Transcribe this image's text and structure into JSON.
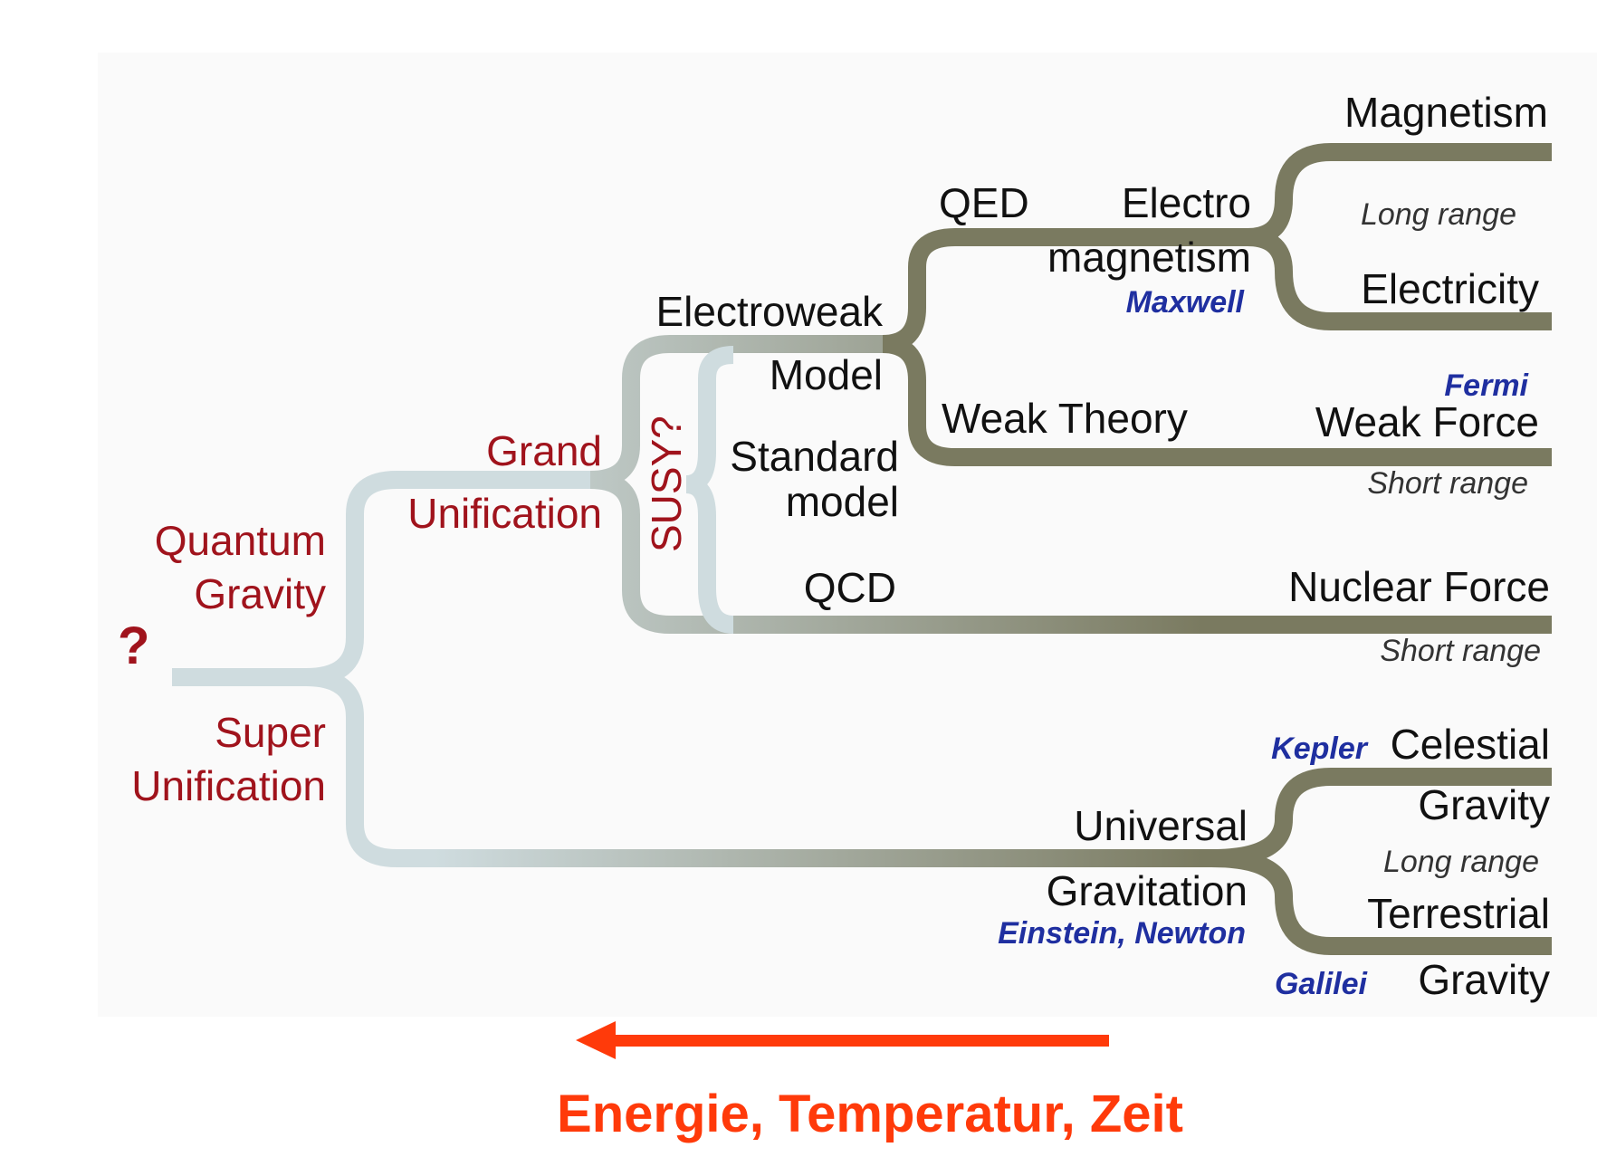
{
  "colors": {
    "early_branch": "#cfdcdf",
    "late_branch": "#7a7a60",
    "arrow": "#ff3a0a",
    "background_panel": "#fafafa"
  },
  "labels": {
    "question_mark": "?",
    "quantum": "Quantum",
    "gravity_q": "Gravity",
    "super": "Super",
    "super_unification": "Unification",
    "grand": "Grand",
    "grand_unification": "Unification",
    "susy": "SUSY?",
    "electroweak": "Electroweak",
    "model": "Model",
    "standard": "Standard",
    "standard_model": "model",
    "qcd": "QCD",
    "qed": "QED",
    "electro": "Electro",
    "electro_magnetism": "magnetism",
    "maxwell": "Maxwell",
    "weak_theory": "Weak Theory",
    "magnetism": "Magnetism",
    "long_range_1": "Long range",
    "electricity": "Electricity",
    "fermi": "Fermi",
    "weak_force": "Weak Force",
    "short_range_1": "Short range",
    "nuclear_force": "Nuclear Force",
    "short_range_2": "Short range",
    "kepler": "Kepler",
    "celestial": "Celestial",
    "gravity_c": "Gravity",
    "long_range_2": "Long range",
    "universal": "Universal",
    "gravitation": "Gravitation",
    "einstein_newton": "Einstein, Newton",
    "terrestrial": "Terrestrial",
    "galilei": "Galilei",
    "gravity_t": "Gravity"
  },
  "arrow": {
    "caption": "Energie, Temperatur, Zeit"
  }
}
